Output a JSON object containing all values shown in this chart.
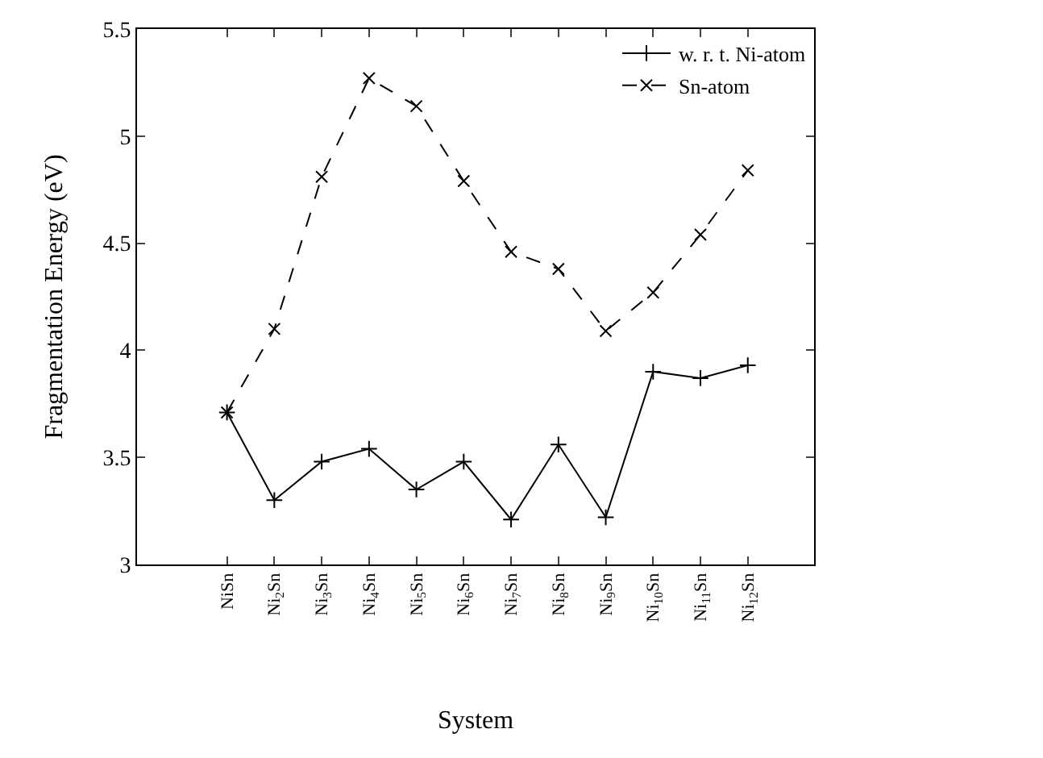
{
  "chart_data": {
    "type": "line",
    "xlabel": "System",
    "ylabel": "Fragmentation Energy (eV)",
    "categories": [
      "NiSn",
      "Ni$_{2}$Sn",
      "Ni$_{3}$Sn",
      "Ni$_{4}$Sn",
      "Ni$_{5}$Sn",
      "Ni$_{6}$Sn",
      "Ni$_{7}$Sn",
      "Ni$_{8}$Sn",
      "Ni$_{9}$Sn",
      "Ni$_{10}$Sn",
      "Ni$_{11}$Sn",
      "Ni$_{12}$Sn"
    ],
    "series": [
      {
        "name": "w. r. t. Ni-atom",
        "color": "#000000",
        "line_style": "solid",
        "values": [
          3.71,
          3.3,
          3.48,
          3.54,
          3.35,
          3.48,
          3.21,
          3.56,
          3.22,
          3.9,
          3.87,
          3.93
        ]
      },
      {
        "name": "Sn-atom",
        "color": "#000000",
        "line_style": "dashed",
        "values": [
          3.71,
          4.1,
          4.81,
          5.27,
          5.14,
          4.79,
          4.46,
          4.38,
          4.09,
          4.27,
          4.54,
          4.84
        ]
      }
    ],
    "ylim": [
      3,
      5.5
    ],
    "yticks": [
      3,
      3.5,
      4,
      4.5,
      5,
      5.5
    ],
    "legend": "top right",
    "marker": "cross"
  }
}
